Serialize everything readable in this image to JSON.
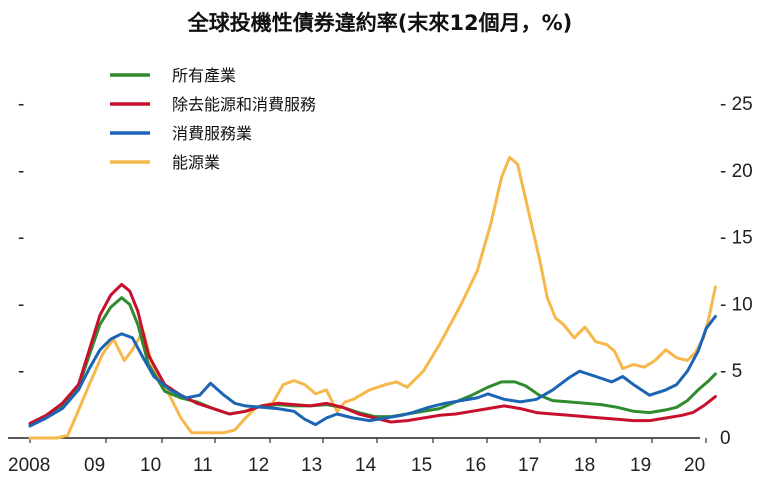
{
  "chart_data": {
    "type": "line",
    "title": "全球投機性債券違約率(末來12個月，%)",
    "x_tick_labels": [
      "2008",
      "09",
      "10",
      "11",
      "12",
      "13",
      "14",
      "15",
      "16",
      "17",
      "18",
      "19",
      "20"
    ],
    "x_range": [
      2008.0,
      2020.75
    ],
    "y_right_ticks": [
      "0",
      "5",
      "10",
      "15",
      "20",
      "25"
    ],
    "y_range": [
      0,
      27
    ],
    "left_axis_ticks": [
      "-",
      "-",
      "-",
      "-",
      "-"
    ],
    "legend_position": "top-left",
    "grid": false,
    "series": [
      {
        "name": "所有產業",
        "color": "#2e8b2e",
        "points": [
          [
            2008.0,
            1.0
          ],
          [
            2008.3,
            1.6
          ],
          [
            2008.6,
            2.4
          ],
          [
            2008.9,
            3.8
          ],
          [
            2009.1,
            6.2
          ],
          [
            2009.3,
            8.5
          ],
          [
            2009.5,
            9.8
          ],
          [
            2009.7,
            10.5
          ],
          [
            2009.85,
            10.0
          ],
          [
            2010.0,
            8.5
          ],
          [
            2010.2,
            5.5
          ],
          [
            2010.5,
            3.5
          ],
          [
            2010.8,
            3.0
          ],
          [
            2011.1,
            2.7
          ],
          [
            2011.4,
            2.2
          ],
          [
            2011.7,
            1.8
          ],
          [
            2012.0,
            2.0
          ],
          [
            2012.3,
            2.4
          ],
          [
            2012.6,
            2.5
          ],
          [
            2012.9,
            2.4
          ],
          [
            2013.2,
            2.4
          ],
          [
            2013.5,
            2.5
          ],
          [
            2013.8,
            2.3
          ],
          [
            2014.1,
            1.9
          ],
          [
            2014.4,
            1.6
          ],
          [
            2014.7,
            1.6
          ],
          [
            2015.0,
            1.8
          ],
          [
            2015.3,
            2.0
          ],
          [
            2015.6,
            2.2
          ],
          [
            2015.9,
            2.7
          ],
          [
            2016.2,
            3.2
          ],
          [
            2016.5,
            3.8
          ],
          [
            2016.75,
            4.2
          ],
          [
            2017.0,
            4.2
          ],
          [
            2017.2,
            3.9
          ],
          [
            2017.45,
            3.2
          ],
          [
            2017.7,
            2.8
          ],
          [
            2018.0,
            2.7
          ],
          [
            2018.3,
            2.6
          ],
          [
            2018.6,
            2.5
          ],
          [
            2018.9,
            2.3
          ],
          [
            2019.2,
            2.0
          ],
          [
            2019.5,
            1.9
          ],
          [
            2019.8,
            2.1
          ],
          [
            2020.0,
            2.3
          ],
          [
            2020.2,
            2.8
          ],
          [
            2020.4,
            3.6
          ],
          [
            2020.6,
            4.3
          ],
          [
            2020.72,
            4.8
          ]
        ]
      },
      {
        "name": "除去能源和消費服務",
        "color": "#c8102e",
        "points": [
          [
            2008.0,
            1.1
          ],
          [
            2008.3,
            1.7
          ],
          [
            2008.6,
            2.6
          ],
          [
            2008.9,
            4.0
          ],
          [
            2009.1,
            6.6
          ],
          [
            2009.3,
            9.2
          ],
          [
            2009.5,
            10.7
          ],
          [
            2009.7,
            11.5
          ],
          [
            2009.85,
            11.0
          ],
          [
            2010.0,
            9.5
          ],
          [
            2010.2,
            6.2
          ],
          [
            2010.5,
            4.0
          ],
          [
            2010.8,
            3.2
          ],
          [
            2011.1,
            2.6
          ],
          [
            2011.4,
            2.2
          ],
          [
            2011.7,
            1.8
          ],
          [
            2012.0,
            2.0
          ],
          [
            2012.3,
            2.4
          ],
          [
            2012.6,
            2.6
          ],
          [
            2012.9,
            2.5
          ],
          [
            2013.2,
            2.4
          ],
          [
            2013.5,
            2.6
          ],
          [
            2013.8,
            2.3
          ],
          [
            2014.1,
            1.8
          ],
          [
            2014.4,
            1.5
          ],
          [
            2014.7,
            1.2
          ],
          [
            2015.0,
            1.3
          ],
          [
            2015.3,
            1.5
          ],
          [
            2015.6,
            1.7
          ],
          [
            2015.9,
            1.8
          ],
          [
            2016.2,
            2.0
          ],
          [
            2016.5,
            2.2
          ],
          [
            2016.8,
            2.4
          ],
          [
            2017.1,
            2.2
          ],
          [
            2017.4,
            1.9
          ],
          [
            2017.7,
            1.8
          ],
          [
            2018.0,
            1.7
          ],
          [
            2018.3,
            1.6
          ],
          [
            2018.6,
            1.5
          ],
          [
            2018.9,
            1.4
          ],
          [
            2019.2,
            1.3
          ],
          [
            2019.5,
            1.3
          ],
          [
            2019.8,
            1.5
          ],
          [
            2020.1,
            1.7
          ],
          [
            2020.3,
            1.9
          ],
          [
            2020.5,
            2.4
          ],
          [
            2020.72,
            3.1
          ]
        ]
      },
      {
        "name": "消費服務業",
        "color": "#1c64b4",
        "points": [
          [
            2008.0,
            0.9
          ],
          [
            2008.3,
            1.5
          ],
          [
            2008.6,
            2.2
          ],
          [
            2008.9,
            3.6
          ],
          [
            2009.1,
            5.2
          ],
          [
            2009.3,
            6.6
          ],
          [
            2009.5,
            7.4
          ],
          [
            2009.7,
            7.8
          ],
          [
            2009.9,
            7.5
          ],
          [
            2010.1,
            6.0
          ],
          [
            2010.3,
            4.6
          ],
          [
            2010.6,
            3.6
          ],
          [
            2010.9,
            3.0
          ],
          [
            2011.15,
            3.2
          ],
          [
            2011.35,
            4.1
          ],
          [
            2011.6,
            3.2
          ],
          [
            2011.8,
            2.6
          ],
          [
            2012.0,
            2.4
          ],
          [
            2012.3,
            2.3
          ],
          [
            2012.6,
            2.2
          ],
          [
            2012.9,
            2.0
          ],
          [
            2013.1,
            1.4
          ],
          [
            2013.3,
            1.0
          ],
          [
            2013.5,
            1.5
          ],
          [
            2013.7,
            1.8
          ],
          [
            2014.0,
            1.5
          ],
          [
            2014.3,
            1.3
          ],
          [
            2014.6,
            1.5
          ],
          [
            2014.9,
            1.7
          ],
          [
            2015.1,
            1.9
          ],
          [
            2015.4,
            2.3
          ],
          [
            2015.7,
            2.6
          ],
          [
            2016.0,
            2.8
          ],
          [
            2016.3,
            3.0
          ],
          [
            2016.5,
            3.3
          ],
          [
            2016.8,
            2.9
          ],
          [
            2017.1,
            2.7
          ],
          [
            2017.4,
            2.9
          ],
          [
            2017.7,
            3.6
          ],
          [
            2018.0,
            4.5
          ],
          [
            2018.2,
            5.0
          ],
          [
            2018.5,
            4.6
          ],
          [
            2018.8,
            4.2
          ],
          [
            2019.0,
            4.6
          ],
          [
            2019.2,
            4.0
          ],
          [
            2019.5,
            3.2
          ],
          [
            2019.8,
            3.6
          ],
          [
            2020.0,
            4.0
          ],
          [
            2020.2,
            5.0
          ],
          [
            2020.4,
            6.5
          ],
          [
            2020.55,
            8.2
          ],
          [
            2020.72,
            9.1
          ]
        ]
      },
      {
        "name": "能源業",
        "color": "#f7b84b",
        "points": [
          [
            2008.0,
            0.0
          ],
          [
            2008.5,
            0.0
          ],
          [
            2008.7,
            0.2
          ],
          [
            2008.85,
            1.6
          ],
          [
            2009.1,
            4.0
          ],
          [
            2009.35,
            6.3
          ],
          [
            2009.55,
            7.4
          ],
          [
            2009.75,
            5.8
          ],
          [
            2009.9,
            6.6
          ],
          [
            2010.1,
            8.0
          ],
          [
            2010.3,
            5.0
          ],
          [
            2010.55,
            3.5
          ],
          [
            2010.8,
            1.5
          ],
          [
            2011.0,
            0.4
          ],
          [
            2011.3,
            0.4
          ],
          [
            2011.6,
            0.4
          ],
          [
            2011.8,
            0.6
          ],
          [
            2012.0,
            1.5
          ],
          [
            2012.2,
            2.3
          ],
          [
            2012.5,
            2.6
          ],
          [
            2012.7,
            4.0
          ],
          [
            2012.9,
            4.3
          ],
          [
            2013.1,
            4.0
          ],
          [
            2013.3,
            3.3
          ],
          [
            2013.5,
            3.6
          ],
          [
            2013.7,
            2.0
          ],
          [
            2013.85,
            2.7
          ],
          [
            2014.0,
            2.9
          ],
          [
            2014.3,
            3.6
          ],
          [
            2014.6,
            4.0
          ],
          [
            2014.8,
            4.2
          ],
          [
            2015.0,
            3.8
          ],
          [
            2015.3,
            5.0
          ],
          [
            2015.6,
            7.0
          ],
          [
            2015.8,
            8.5
          ],
          [
            2016.0,
            10.0
          ],
          [
            2016.3,
            12.5
          ],
          [
            2016.55,
            16.0
          ],
          [
            2016.75,
            19.5
          ],
          [
            2016.9,
            21.0
          ],
          [
            2017.05,
            20.5
          ],
          [
            2017.25,
            17.0
          ],
          [
            2017.45,
            13.5
          ],
          [
            2017.6,
            10.5
          ],
          [
            2017.75,
            9.0
          ],
          [
            2017.9,
            8.5
          ],
          [
            2018.1,
            7.5
          ],
          [
            2018.3,
            8.3
          ],
          [
            2018.5,
            7.2
          ],
          [
            2018.7,
            7.0
          ],
          [
            2018.85,
            6.5
          ],
          [
            2019.0,
            5.2
          ],
          [
            2019.2,
            5.5
          ],
          [
            2019.4,
            5.3
          ],
          [
            2019.6,
            5.8
          ],
          [
            2019.8,
            6.6
          ],
          [
            2020.0,
            6.0
          ],
          [
            2020.2,
            5.8
          ],
          [
            2020.35,
            6.4
          ],
          [
            2020.5,
            7.5
          ],
          [
            2020.6,
            9.0
          ],
          [
            2020.72,
            11.3
          ]
        ]
      }
    ]
  }
}
